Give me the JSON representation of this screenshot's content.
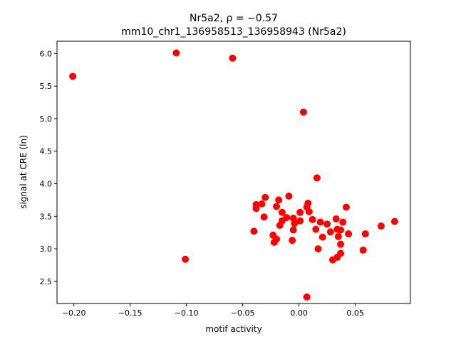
{
  "chart_data": {
    "type": "scatter",
    "title_line1": "Nr5a2, ρ = −0.57",
    "title_line2": "mm10_chr1_136958513_136958943 (Nr5a2)",
    "xlabel": "motif activity",
    "ylabel": "signal at CRE (ln)",
    "xlim": [
      -0.215,
      0.099
    ],
    "ylim": [
      2.16,
      6.19
    ],
    "xticks": [
      -0.2,
      -0.15,
      -0.1,
      -0.05,
      0.0,
      0.05
    ],
    "xtick_labels": [
      "−0.20",
      "−0.15",
      "−0.10",
      "−0.05",
      "0.00",
      "0.05"
    ],
    "yticks": [
      2.5,
      3.0,
      3.5,
      4.0,
      4.5,
      5.0,
      5.5,
      6.0
    ],
    "ytick_labels": [
      "2.5",
      "3.0",
      "3.5",
      "4.0",
      "4.5",
      "5.0",
      "5.5",
      "6.0"
    ],
    "color": "#ff0000",
    "points": [
      [
        -0.201,
        5.65
      ],
      [
        -0.109,
        6.01
      ],
      [
        -0.059,
        5.93
      ],
      [
        0.004,
        5.1
      ],
      [
        -0.101,
        2.84
      ],
      [
        0.016,
        4.09
      ],
      [
        -0.03,
        3.79
      ],
      [
        -0.038,
        3.68
      ],
      [
        -0.033,
        3.69
      ],
      [
        -0.038,
        3.62
      ],
      [
        -0.018,
        3.75
      ],
      [
        -0.009,
        3.81
      ],
      [
        -0.02,
        3.65
      ],
      [
        -0.031,
        3.49
      ],
      [
        -0.04,
        3.27
      ],
      [
        -0.015,
        3.56
      ],
      [
        -0.015,
        3.43
      ],
      [
        -0.011,
        3.48
      ],
      [
        -0.005,
        3.47
      ],
      [
        -0.017,
        3.36
      ],
      [
        0.001,
        3.56
      ],
      [
        0.001,
        3.43
      ],
      [
        -0.004,
        3.39
      ],
      [
        -0.005,
        3.29
      ],
      [
        -0.023,
        3.21
      ],
      [
        -0.02,
        3.15
      ],
      [
        -0.022,
        3.1
      ],
      [
        -0.006,
        3.13
      ],
      [
        0.008,
        3.7
      ],
      [
        0.007,
        3.64
      ],
      [
        0.009,
        3.57
      ],
      [
        0.012,
        3.45
      ],
      [
        0.019,
        3.41
      ],
      [
        0.015,
        3.3
      ],
      [
        0.021,
        3.18
      ],
      [
        0.017,
        3.0
      ],
      [
        0.025,
        3.38
      ],
      [
        0.033,
        3.46
      ],
      [
        0.039,
        3.41
      ],
      [
        0.042,
        3.64
      ],
      [
        0.028,
        3.26
      ],
      [
        0.034,
        3.3
      ],
      [
        0.037,
        3.29
      ],
      [
        0.035,
        3.19
      ],
      [
        0.044,
        3.23
      ],
      [
        0.037,
        3.07
      ],
      [
        0.037,
        2.93
      ],
      [
        0.034,
        2.87
      ],
      [
        0.03,
        2.83
      ],
      [
        0.059,
        3.23
      ],
      [
        0.057,
        2.98
      ],
      [
        0.073,
        3.35
      ],
      [
        0.085,
        3.42
      ],
      [
        0.007,
        2.26
      ]
    ]
  }
}
